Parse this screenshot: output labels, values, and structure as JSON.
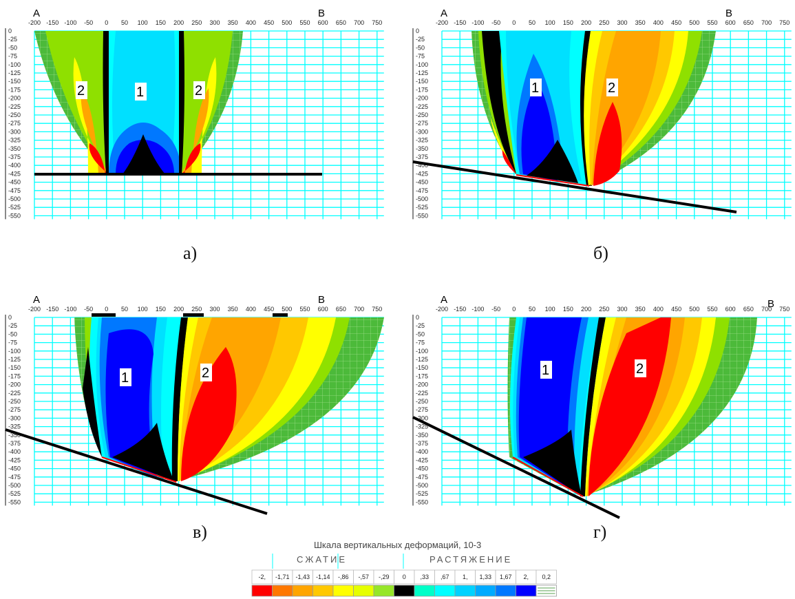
{
  "panels": [
    {
      "caption": "а)",
      "corner_left": "A",
      "corner_right": "B",
      "x_ticks": [
        "-200",
        "-150",
        "-100",
        "-50",
        "0",
        "50",
        "100",
        "150",
        "200",
        "250",
        "300",
        "350",
        "400",
        "450",
        "500",
        "550",
        "600",
        "650",
        "700",
        "750"
      ],
      "y_ticks": [
        "0",
        "-25",
        "-50",
        "-75",
        "-100",
        "-125",
        "-150",
        "-175",
        "-200",
        "-225",
        "-250",
        "-275",
        "-300",
        "-325",
        "-350",
        "-375",
        "-400",
        "-425",
        "-450",
        "-475",
        "-500",
        "-525",
        "-550"
      ],
      "zone_labels": [
        "2",
        "1",
        "2"
      ]
    },
    {
      "caption": "б)",
      "corner_left": "A",
      "corner_right": "B",
      "x_ticks": [
        "-200",
        "-150",
        "-100",
        "-50",
        "0",
        "50",
        "100",
        "150",
        "200",
        "250",
        "300",
        "350",
        "400",
        "450",
        "500",
        "550",
        "600",
        "650",
        "700",
        "750"
      ],
      "y_ticks": [
        "0",
        "-25",
        "-50",
        "-75",
        "-100",
        "-125",
        "-150",
        "-175",
        "-200",
        "-225",
        "-250",
        "-275",
        "-300",
        "-325",
        "-350",
        "-375",
        "-400",
        "-425",
        "-450",
        "-475",
        "-500",
        "-525",
        "-550"
      ],
      "zone_labels": [
        "1",
        "2"
      ]
    },
    {
      "caption": "в)",
      "corner_left": "A",
      "corner_right": "B",
      "x_ticks": [
        "-200",
        "-150",
        "-100",
        "-50",
        "0",
        "50",
        "100",
        "150",
        "200",
        "250",
        "300",
        "350",
        "400",
        "450",
        "500",
        "550",
        "600",
        "650",
        "700",
        "750"
      ],
      "y_ticks": [
        "0",
        "-25",
        "-50",
        "-75",
        "-100",
        "-125",
        "-150",
        "-175",
        "-200",
        "-225",
        "-250",
        "-275",
        "-300",
        "-325",
        "-350",
        "-375",
        "-400",
        "-425",
        "-450",
        "-475",
        "-500",
        "-525",
        "-550"
      ],
      "zone_labels": [
        "1",
        "2"
      ]
    },
    {
      "caption": "г)",
      "corner_left": "A",
      "corner_right": "B",
      "x_ticks": [
        "-200",
        "-150",
        "-100",
        "-50",
        "0",
        "50",
        "100",
        "150",
        "200",
        "250",
        "300",
        "350",
        "400",
        "450",
        "500",
        "550",
        "600",
        "650",
        "700",
        "750"
      ],
      "y_ticks": [
        "0",
        "-25",
        "-50",
        "-75",
        "-100",
        "-125",
        "-150",
        "-175",
        "-200",
        "-225",
        "-250",
        "-275",
        "-300",
        "-325",
        "-350",
        "-375",
        "-400",
        "-425",
        "-450",
        "-475",
        "-500",
        "-525",
        "-550"
      ],
      "zone_labels": [
        "1",
        "2"
      ]
    }
  ],
  "legend": {
    "title": "Шкала вертикальных деформаций, 10-3",
    "compression_label": "СЖАТИЕ",
    "tension_label": "РАСТЯЖЕНИЕ",
    "values": [
      "-2,",
      "-1,71",
      "-1,43",
      "-1,14",
      "-,86",
      "-,57",
      "-,29",
      "0",
      ",33",
      ",67",
      "1,",
      "1,33",
      "1,67",
      "2,",
      "0,2"
    ],
    "colors": [
      "#ff0000",
      "#ff7800",
      "#ffa500",
      "#ffc800",
      "#ffff00",
      "#e6ff00",
      "#96e628",
      "#000000",
      "#00ffc8",
      "#00ffff",
      "#00d2ff",
      "#00aaff",
      "#0078ff",
      "#0000ff",
      "#ffffff"
    ]
  },
  "colors": {
    "grid": "#00ffff",
    "background": "#ffffff",
    "green_outer": "#4cba3a",
    "green_inner": "#8fe000",
    "yellow_green": "#c8f000",
    "yellow": "#ffff00",
    "orange": "#ffa500",
    "red": "#ff0000",
    "cyan": "#00ffff",
    "light_blue": "#00e0ff",
    "blue": "#0050ff",
    "deep_blue": "#0000ff",
    "black": "#000000"
  }
}
